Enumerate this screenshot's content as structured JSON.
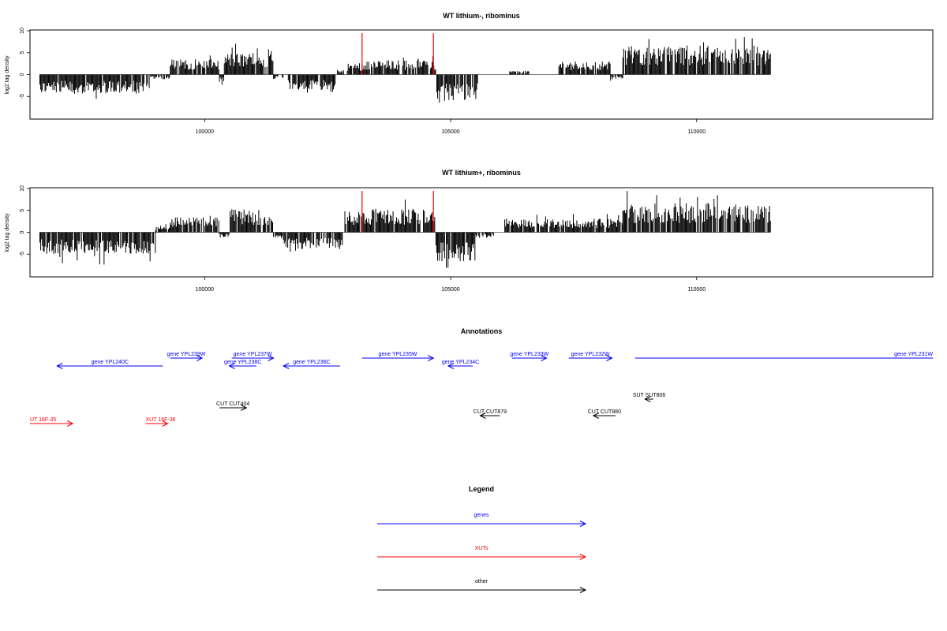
{
  "chart_data": [
    {
      "type": "bar",
      "title": "WT lithium-, ribominus",
      "ylabel": "log2 tag density",
      "ylim": [
        -10,
        10
      ],
      "yticks": [
        10,
        5,
        0,
        -5
      ],
      "xlim": [
        96450,
        114800
      ],
      "xticks": [
        100000,
        105000,
        110000
      ],
      "xtick_labels": [
        "100000",
        "105000",
        "110000"
      ],
      "markers": [
        103200,
        104650
      ],
      "marker_color": "#ff0000",
      "segments": [
        {
          "start": 96650,
          "end": 98900,
          "sign": -1,
          "mag": 4.0
        },
        {
          "start": 98900,
          "end": 99300,
          "sign": -1,
          "mag": 1.0
        },
        {
          "start": 99300,
          "end": 100300,
          "sign": 1,
          "mag": 3.2
        },
        {
          "start": 100300,
          "end": 100400,
          "sign": -1,
          "mag": 1.5
        },
        {
          "start": 100400,
          "end": 101400,
          "sign": 1,
          "mag": 4.5
        },
        {
          "start": 101400,
          "end": 101600,
          "sign": -1,
          "mag": 1.0
        },
        {
          "start": 101700,
          "end": 102700,
          "sign": -1,
          "mag": 3.2
        },
        {
          "start": 102700,
          "end": 102850,
          "sign": 1,
          "mag": 1.0
        },
        {
          "start": 102900,
          "end": 103300,
          "sign": 1,
          "mag": 2.5
        },
        {
          "start": 103300,
          "end": 104700,
          "sign": 1,
          "mag": 3.0
        },
        {
          "start": 104700,
          "end": 105550,
          "sign": -1,
          "mag": 5.5
        },
        {
          "start": 106200,
          "end": 106600,
          "sign": 1,
          "mag": 0.8
        },
        {
          "start": 107200,
          "end": 108250,
          "sign": 1,
          "mag": 2.8
        },
        {
          "start": 108250,
          "end": 108500,
          "sign": -1,
          "mag": 1.0
        },
        {
          "start": 108500,
          "end": 111500,
          "sign": 1,
          "mag": 6.0
        }
      ]
    },
    {
      "type": "bar",
      "title": "WT lithium+, ribominus",
      "ylabel": "log2 tag density",
      "ylim": [
        -10,
        10
      ],
      "yticks": [
        10,
        5,
        0,
        -5
      ],
      "xlim": [
        96450,
        114800
      ],
      "xticks": [
        100000,
        105000,
        110000
      ],
      "xtick_labels": [
        "100000",
        "105000",
        "110000"
      ],
      "markers": [
        103200,
        104650
      ],
      "marker_color": "#ff0000",
      "segments": [
        {
          "start": 96650,
          "end": 99000,
          "sign": -1,
          "mag": 4.5
        },
        {
          "start": 99000,
          "end": 99300,
          "sign": 1,
          "mag": 1.2
        },
        {
          "start": 99300,
          "end": 100300,
          "sign": 1,
          "mag": 3.2
        },
        {
          "start": 100300,
          "end": 100500,
          "sign": -1,
          "mag": 1.2
        },
        {
          "start": 100500,
          "end": 101400,
          "sign": 1,
          "mag": 4.8
        },
        {
          "start": 101400,
          "end": 101600,
          "sign": -1,
          "mag": 1.2
        },
        {
          "start": 101600,
          "end": 102800,
          "sign": -1,
          "mag": 3.5
        },
        {
          "start": 102850,
          "end": 103300,
          "sign": 1,
          "mag": 4.5
        },
        {
          "start": 103300,
          "end": 104700,
          "sign": 1,
          "mag": 5.0
        },
        {
          "start": 104700,
          "end": 105500,
          "sign": -1,
          "mag": 6.0
        },
        {
          "start": 105500,
          "end": 105900,
          "sign": -1,
          "mag": 1.0
        },
        {
          "start": 106100,
          "end": 108500,
          "sign": 1,
          "mag": 2.8
        },
        {
          "start": 108500,
          "end": 111500,
          "sign": 1,
          "mag": 6.0
        }
      ]
    }
  ],
  "annotations": {
    "title": "Annotations",
    "xlim": [
      96450,
      114800
    ],
    "colors": {
      "gene": "#0000ff",
      "XUT": "#ff0000",
      "other": "#000000"
    },
    "features": [
      {
        "label": "gene YPL240C",
        "kind": "gene",
        "start": 97000,
        "end": 99150,
        "dir": "left",
        "row": 2,
        "label_pos": "center"
      },
      {
        "label": "gene YPL239W",
        "kind": "gene",
        "start": 99300,
        "end": 99950,
        "dir": "right",
        "row": 1,
        "label_pos": "center"
      },
      {
        "label": "gene YPL237W",
        "kind": "gene",
        "start": 100550,
        "end": 101400,
        "dir": "right",
        "row": 1,
        "label_pos": "center"
      },
      {
        "label": "gene YPL238C",
        "kind": "gene",
        "start": 100500,
        "end": 101050,
        "dir": "left",
        "row": 2,
        "label_pos": "center"
      },
      {
        "label": "gene YPL236C",
        "kind": "gene",
        "start": 101600,
        "end": 102750,
        "dir": "left",
        "row": 2,
        "label_pos": "center"
      },
      {
        "label": "gene YPL235W",
        "kind": "gene",
        "start": 103200,
        "end": 104650,
        "dir": "right",
        "row": 1,
        "label_pos": "center"
      },
      {
        "label": "gene YPL234C",
        "kind": "gene",
        "start": 104950,
        "end": 105450,
        "dir": "left",
        "row": 2,
        "label_pos": "center"
      },
      {
        "label": "gene YPL233W",
        "kind": "gene",
        "start": 106250,
        "end": 106950,
        "dir": "right",
        "row": 1,
        "label_pos": "center"
      },
      {
        "label": "gene YPL232W",
        "kind": "gene",
        "start": 107400,
        "end": 108280,
        "dir": "right",
        "row": 1,
        "label_pos": "center"
      },
      {
        "label": "gene YPL231W",
        "kind": "gene",
        "start": 108750,
        "end": 114800,
        "dir": "none",
        "row": 1,
        "label_pos": "end"
      },
      {
        "label": "CUT CUT404",
        "kind": "other",
        "start": 100300,
        "end": 100850,
        "dir": "right",
        "row": 3,
        "label_pos": "center"
      },
      {
        "label": "CUT CUT879",
        "kind": "other",
        "start": 105600,
        "end": 106000,
        "dir": "left",
        "row": 4,
        "label_pos": "center"
      },
      {
        "label": "CUT CUT880",
        "kind": "other",
        "start": 107900,
        "end": 108350,
        "dir": "left",
        "row": 4,
        "label_pos": "center"
      },
      {
        "label": "SUT SUT806",
        "kind": "other",
        "start": 108950,
        "end": 109120,
        "dir": "left",
        "row": 5,
        "label_pos": "center"
      },
      {
        "label": "UT 16F-35",
        "kind": "XUT",
        "start": 96450,
        "end": 97320,
        "dir": "right",
        "row": 6,
        "label_pos": "start"
      },
      {
        "label": "XUT 16F-36",
        "kind": "XUT",
        "start": 98800,
        "end": 99250,
        "dir": "right",
        "row": 6,
        "label_pos": "start"
      }
    ]
  },
  "legend": {
    "title": "Legend",
    "items": [
      {
        "label": "genes",
        "color": "#0000ff"
      },
      {
        "label": "XUTs",
        "color": "#ff0000"
      },
      {
        "label": "other",
        "color": "#000000"
      }
    ]
  }
}
